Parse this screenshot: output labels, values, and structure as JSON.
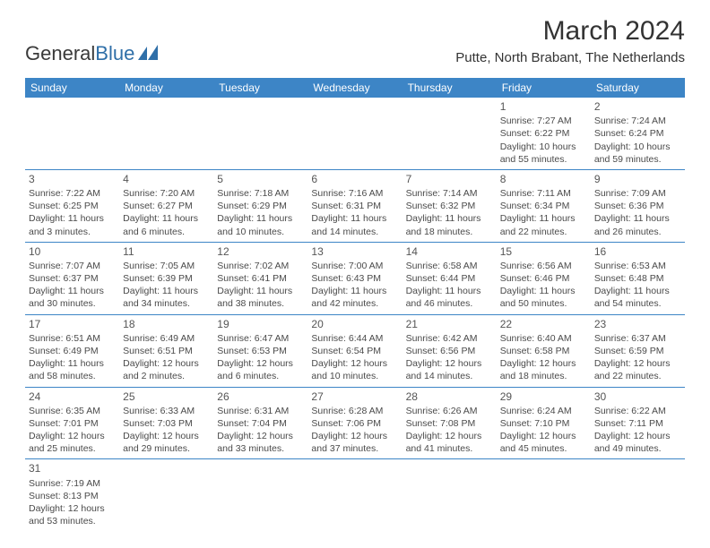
{
  "logo": {
    "text1": "General",
    "text2": "Blue"
  },
  "title": "March 2024",
  "location": "Putte, North Brabant, The Netherlands",
  "colors": {
    "header_bg": "#3d85c6",
    "header_text": "#ffffff",
    "row_divider": "#3d85c6",
    "body_text": "#4a4a4a",
    "logo_blue": "#2f6fa8"
  },
  "day_names": [
    "Sunday",
    "Monday",
    "Tuesday",
    "Wednesday",
    "Thursday",
    "Friday",
    "Saturday"
  ],
  "weeks": [
    [
      null,
      null,
      null,
      null,
      null,
      {
        "n": "1",
        "sr": "Sunrise: 7:27 AM",
        "ss": "Sunset: 6:22 PM",
        "dl1": "Daylight: 10 hours",
        "dl2": "and 55 minutes."
      },
      {
        "n": "2",
        "sr": "Sunrise: 7:24 AM",
        "ss": "Sunset: 6:24 PM",
        "dl1": "Daylight: 10 hours",
        "dl2": "and 59 minutes."
      }
    ],
    [
      {
        "n": "3",
        "sr": "Sunrise: 7:22 AM",
        "ss": "Sunset: 6:25 PM",
        "dl1": "Daylight: 11 hours",
        "dl2": "and 3 minutes."
      },
      {
        "n": "4",
        "sr": "Sunrise: 7:20 AM",
        "ss": "Sunset: 6:27 PM",
        "dl1": "Daylight: 11 hours",
        "dl2": "and 6 minutes."
      },
      {
        "n": "5",
        "sr": "Sunrise: 7:18 AM",
        "ss": "Sunset: 6:29 PM",
        "dl1": "Daylight: 11 hours",
        "dl2": "and 10 minutes."
      },
      {
        "n": "6",
        "sr": "Sunrise: 7:16 AM",
        "ss": "Sunset: 6:31 PM",
        "dl1": "Daylight: 11 hours",
        "dl2": "and 14 minutes."
      },
      {
        "n": "7",
        "sr": "Sunrise: 7:14 AM",
        "ss": "Sunset: 6:32 PM",
        "dl1": "Daylight: 11 hours",
        "dl2": "and 18 minutes."
      },
      {
        "n": "8",
        "sr": "Sunrise: 7:11 AM",
        "ss": "Sunset: 6:34 PM",
        "dl1": "Daylight: 11 hours",
        "dl2": "and 22 minutes."
      },
      {
        "n": "9",
        "sr": "Sunrise: 7:09 AM",
        "ss": "Sunset: 6:36 PM",
        "dl1": "Daylight: 11 hours",
        "dl2": "and 26 minutes."
      }
    ],
    [
      {
        "n": "10",
        "sr": "Sunrise: 7:07 AM",
        "ss": "Sunset: 6:37 PM",
        "dl1": "Daylight: 11 hours",
        "dl2": "and 30 minutes."
      },
      {
        "n": "11",
        "sr": "Sunrise: 7:05 AM",
        "ss": "Sunset: 6:39 PM",
        "dl1": "Daylight: 11 hours",
        "dl2": "and 34 minutes."
      },
      {
        "n": "12",
        "sr": "Sunrise: 7:02 AM",
        "ss": "Sunset: 6:41 PM",
        "dl1": "Daylight: 11 hours",
        "dl2": "and 38 minutes."
      },
      {
        "n": "13",
        "sr": "Sunrise: 7:00 AM",
        "ss": "Sunset: 6:43 PM",
        "dl1": "Daylight: 11 hours",
        "dl2": "and 42 minutes."
      },
      {
        "n": "14",
        "sr": "Sunrise: 6:58 AM",
        "ss": "Sunset: 6:44 PM",
        "dl1": "Daylight: 11 hours",
        "dl2": "and 46 minutes."
      },
      {
        "n": "15",
        "sr": "Sunrise: 6:56 AM",
        "ss": "Sunset: 6:46 PM",
        "dl1": "Daylight: 11 hours",
        "dl2": "and 50 minutes."
      },
      {
        "n": "16",
        "sr": "Sunrise: 6:53 AM",
        "ss": "Sunset: 6:48 PM",
        "dl1": "Daylight: 11 hours",
        "dl2": "and 54 minutes."
      }
    ],
    [
      {
        "n": "17",
        "sr": "Sunrise: 6:51 AM",
        "ss": "Sunset: 6:49 PM",
        "dl1": "Daylight: 11 hours",
        "dl2": "and 58 minutes."
      },
      {
        "n": "18",
        "sr": "Sunrise: 6:49 AM",
        "ss": "Sunset: 6:51 PM",
        "dl1": "Daylight: 12 hours",
        "dl2": "and 2 minutes."
      },
      {
        "n": "19",
        "sr": "Sunrise: 6:47 AM",
        "ss": "Sunset: 6:53 PM",
        "dl1": "Daylight: 12 hours",
        "dl2": "and 6 minutes."
      },
      {
        "n": "20",
        "sr": "Sunrise: 6:44 AM",
        "ss": "Sunset: 6:54 PM",
        "dl1": "Daylight: 12 hours",
        "dl2": "and 10 minutes."
      },
      {
        "n": "21",
        "sr": "Sunrise: 6:42 AM",
        "ss": "Sunset: 6:56 PM",
        "dl1": "Daylight: 12 hours",
        "dl2": "and 14 minutes."
      },
      {
        "n": "22",
        "sr": "Sunrise: 6:40 AM",
        "ss": "Sunset: 6:58 PM",
        "dl1": "Daylight: 12 hours",
        "dl2": "and 18 minutes."
      },
      {
        "n": "23",
        "sr": "Sunrise: 6:37 AM",
        "ss": "Sunset: 6:59 PM",
        "dl1": "Daylight: 12 hours",
        "dl2": "and 22 minutes."
      }
    ],
    [
      {
        "n": "24",
        "sr": "Sunrise: 6:35 AM",
        "ss": "Sunset: 7:01 PM",
        "dl1": "Daylight: 12 hours",
        "dl2": "and 25 minutes."
      },
      {
        "n": "25",
        "sr": "Sunrise: 6:33 AM",
        "ss": "Sunset: 7:03 PM",
        "dl1": "Daylight: 12 hours",
        "dl2": "and 29 minutes."
      },
      {
        "n": "26",
        "sr": "Sunrise: 6:31 AM",
        "ss": "Sunset: 7:04 PM",
        "dl1": "Daylight: 12 hours",
        "dl2": "and 33 minutes."
      },
      {
        "n": "27",
        "sr": "Sunrise: 6:28 AM",
        "ss": "Sunset: 7:06 PM",
        "dl1": "Daylight: 12 hours",
        "dl2": "and 37 minutes."
      },
      {
        "n": "28",
        "sr": "Sunrise: 6:26 AM",
        "ss": "Sunset: 7:08 PM",
        "dl1": "Daylight: 12 hours",
        "dl2": "and 41 minutes."
      },
      {
        "n": "29",
        "sr": "Sunrise: 6:24 AM",
        "ss": "Sunset: 7:10 PM",
        "dl1": "Daylight: 12 hours",
        "dl2": "and 45 minutes."
      },
      {
        "n": "30",
        "sr": "Sunrise: 6:22 AM",
        "ss": "Sunset: 7:11 PM",
        "dl1": "Daylight: 12 hours",
        "dl2": "and 49 minutes."
      }
    ],
    [
      {
        "n": "31",
        "sr": "Sunrise: 7:19 AM",
        "ss": "Sunset: 8:13 PM",
        "dl1": "Daylight: 12 hours",
        "dl2": "and 53 minutes."
      },
      null,
      null,
      null,
      null,
      null,
      null
    ]
  ]
}
